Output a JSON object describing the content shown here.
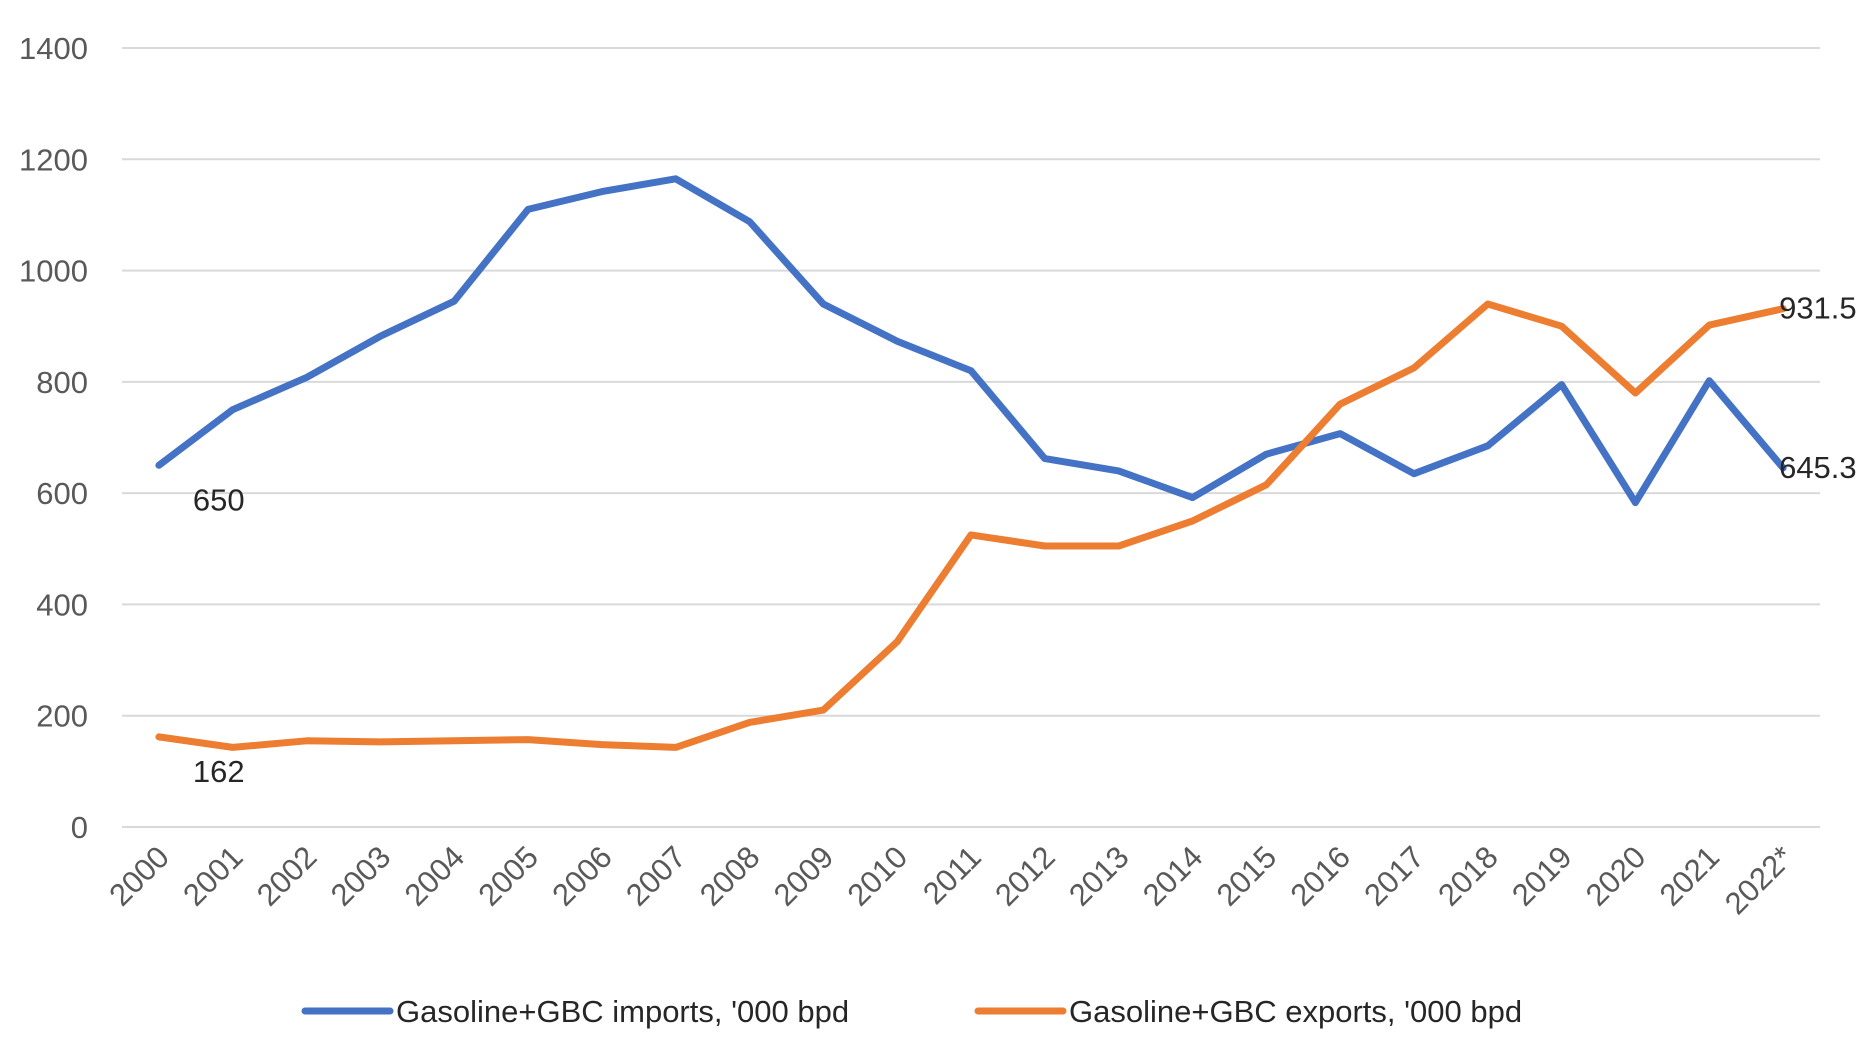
{
  "chart_data": {
    "type": "line",
    "title": "",
    "xlabel": "",
    "ylabel": "",
    "ylim": [
      0,
      1400
    ],
    "yticks": [
      0,
      200,
      400,
      600,
      800,
      1000,
      1200,
      1400
    ],
    "grid": true,
    "legend_position": "bottom",
    "categories": [
      "2000",
      "2001",
      "2002",
      "2003",
      "2004",
      "2005",
      "2006",
      "2007",
      "2008",
      "2009",
      "2010",
      "2011",
      "2012",
      "2013",
      "2014",
      "2015",
      "2016",
      "2017",
      "2018",
      "2019",
      "2020",
      "2021",
      "2022*"
    ],
    "series": [
      {
        "name": "Gasoline+GBC imports, '000 bpd",
        "color": "#4472c4",
        "values": [
          650,
          750,
          808,
          882,
          945,
          1110,
          1142,
          1165,
          1088,
          940,
          873,
          820,
          662,
          640,
          592,
          670,
          707,
          635,
          685,
          795,
          583,
          802,
          645.3
        ]
      },
      {
        "name": "Gasoline+GBC exports, '000 bpd",
        "color": "#ed7d31",
        "values": [
          162,
          143,
          155,
          153,
          155,
          157,
          148,
          143,
          188,
          210,
          333,
          525,
          505,
          505,
          550,
          615,
          760,
          825,
          940,
          900,
          780,
          902,
          931.5
        ]
      }
    ],
    "data_labels": [
      {
        "series": 0,
        "index": 0,
        "text": "650"
      },
      {
        "series": 0,
        "index": 22,
        "text": "645.3"
      },
      {
        "series": 1,
        "index": 0,
        "text": "162"
      },
      {
        "series": 1,
        "index": 22,
        "text": "931.5"
      }
    ]
  }
}
